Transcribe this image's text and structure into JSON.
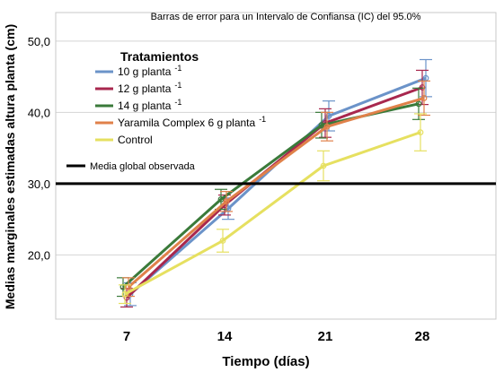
{
  "chart_data": {
    "type": "line",
    "title": "Barras de error para un Intervalo de Confiansa (IC) del 95.0%",
    "xlabel": "Tiempo (días)",
    "ylabel": "Medias marginales estimadas altura planta (cm)",
    "categories": [
      "7",
      "14",
      "21",
      "28"
    ],
    "ylim": [
      11.0,
      54.0
    ],
    "yticks": [
      "20,0",
      "30,0",
      "40,0",
      "50,0"
    ],
    "ytick_values": [
      20,
      30,
      40,
      50
    ],
    "grid": true,
    "legend_title": "Tratamientos",
    "legend_position": "top-left",
    "reference_line": {
      "value": 30.0,
      "label": "Media global observada",
      "color": "#000000"
    },
    "series": [
      {
        "name": "10 g planta",
        "sup": "-1",
        "color": "#6b93c9",
        "values": [
          14.5,
          26.5,
          39.5,
          44.8
        ],
        "lower": [
          12.9,
          25.0,
          37.4,
          42.2
        ],
        "upper": [
          16.1,
          28.0,
          41.6,
          47.4
        ]
      },
      {
        "name": "12 g planta",
        "sup": "-1",
        "color": "#a8274e",
        "values": [
          14.0,
          27.0,
          38.5,
          43.5
        ],
        "lower": [
          12.7,
          25.6,
          36.5,
          41.1
        ],
        "upper": [
          15.3,
          28.4,
          40.5,
          45.9
        ]
      },
      {
        "name": "14 g planta",
        "sup": "-1",
        "color": "#3a7a3a",
        "values": [
          15.5,
          27.8,
          38.2,
          41.2
        ],
        "lower": [
          14.2,
          26.4,
          36.4,
          39.0
        ],
        "upper": [
          16.8,
          29.2,
          40.0,
          43.4
        ]
      },
      {
        "name": "Yaramila Complex  6 g planta",
        "sup": "-1",
        "color": "#e0814a",
        "values": [
          15.5,
          27.5,
          38.0,
          42.0
        ],
        "lower": [
          14.2,
          26.1,
          36.0,
          39.6
        ],
        "upper": [
          16.8,
          28.9,
          40.0,
          44.4
        ]
      },
      {
        "name": "Control",
        "sup": "",
        "color": "#e6e060",
        "values": [
          14.5,
          22.0,
          32.5,
          37.2
        ],
        "lower": [
          13.2,
          20.4,
          30.4,
          34.6
        ],
        "upper": [
          15.8,
          23.6,
          34.6,
          39.8
        ]
      }
    ]
  }
}
